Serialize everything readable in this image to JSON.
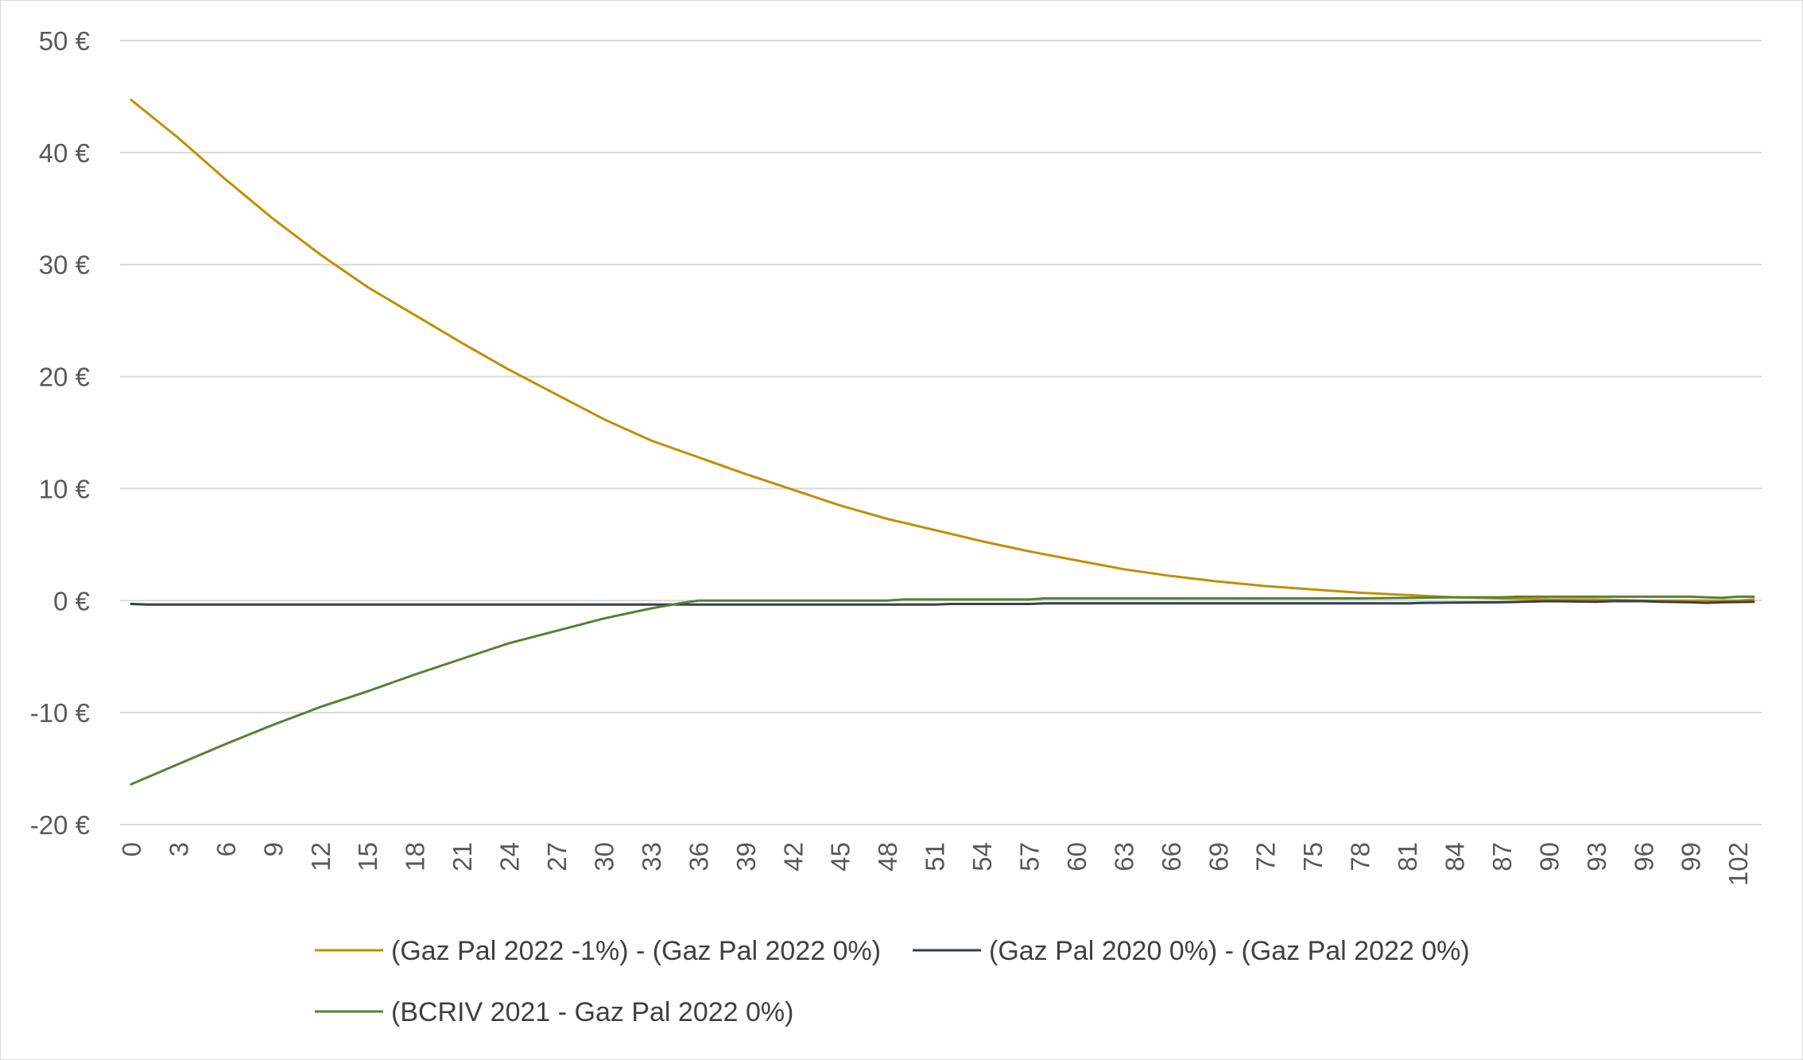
{
  "chart_data": {
    "type": "line",
    "title": "",
    "xlabel": "",
    "ylabel": "",
    "x_range": [
      0,
      103
    ],
    "x_tick_step": 3,
    "ylim": [
      -20,
      50
    ],
    "y_tick_step": 10,
    "y_tick_suffix": " €",
    "grid": "horizontal",
    "legend_position": "bottom",
    "series": [
      {
        "name": "(Gaz Pal 2022 -1%) - (Gaz Pal 2022 0%)",
        "color": "#BF9000",
        "points": [
          [
            0,
            44.7
          ],
          [
            3,
            41.3
          ],
          [
            6,
            37.6
          ],
          [
            9,
            34.1
          ],
          [
            12,
            30.9
          ],
          [
            15,
            28.0
          ],
          [
            18,
            25.5
          ],
          [
            21,
            23.0
          ],
          [
            24,
            20.6
          ],
          [
            27,
            18.4
          ],
          [
            30,
            16.2
          ],
          [
            33,
            14.3
          ],
          [
            36,
            12.8
          ],
          [
            39,
            11.3
          ],
          [
            42,
            9.9
          ],
          [
            45,
            8.5
          ],
          [
            48,
            7.3
          ],
          [
            51,
            6.3
          ],
          [
            54,
            5.3
          ],
          [
            57,
            4.4
          ],
          [
            60,
            3.6
          ],
          [
            63,
            2.8
          ],
          [
            66,
            2.2
          ],
          [
            69,
            1.7
          ],
          [
            72,
            1.3
          ],
          [
            75,
            1.0
          ],
          [
            78,
            0.7
          ],
          [
            81,
            0.5
          ],
          [
            84,
            0.3
          ],
          [
            87,
            0.2
          ],
          [
            90,
            0.1
          ],
          [
            93,
            0.1
          ],
          [
            96,
            0.0
          ],
          [
            99,
            0.0
          ],
          [
            102,
            0.0
          ],
          [
            103,
            0.1
          ]
        ]
      },
      {
        "name": "(Gaz Pal 2020 0%) - (Gaz Pal 2022 0%)",
        "color": "#333F50",
        "points": [
          [
            0,
            -0.3
          ],
          [
            1,
            -0.35
          ],
          [
            15,
            -0.35
          ],
          [
            30,
            -0.35
          ],
          [
            45,
            -0.35
          ],
          [
            51,
            -0.35
          ],
          [
            52,
            -0.3
          ],
          [
            57,
            -0.3
          ],
          [
            58,
            -0.25
          ],
          [
            81,
            -0.25
          ],
          [
            82,
            -0.2
          ],
          [
            87,
            -0.15
          ],
          [
            90,
            -0.05
          ],
          [
            93,
            -0.1
          ],
          [
            94,
            -0.05
          ],
          [
            96,
            -0.05
          ],
          [
            97,
            -0.1
          ],
          [
            99,
            -0.15
          ],
          [
            100,
            -0.2
          ],
          [
            101,
            -0.15
          ],
          [
            103,
            -0.1
          ]
        ]
      },
      {
        "name": "(BCRIV 2021 - Gaz Pal 2022 0%)",
        "color": "#548235",
        "points": [
          [
            0,
            -16.4
          ],
          [
            3,
            -14.6
          ],
          [
            6,
            -12.8
          ],
          [
            9,
            -11.1
          ],
          [
            12,
            -9.5
          ],
          [
            15,
            -8.1
          ],
          [
            18,
            -6.6
          ],
          [
            21,
            -5.2
          ],
          [
            24,
            -3.8
          ],
          [
            27,
            -2.7
          ],
          [
            30,
            -1.6
          ],
          [
            33,
            -0.7
          ],
          [
            35,
            -0.2
          ],
          [
            36,
            0.0
          ],
          [
            39,
            0.0
          ],
          [
            42,
            0.0
          ],
          [
            45,
            0.0
          ],
          [
            48,
            0.0
          ],
          [
            49,
            0.1
          ],
          [
            57,
            0.1
          ],
          [
            58,
            0.2
          ],
          [
            78,
            0.2
          ],
          [
            84,
            0.3
          ],
          [
            87,
            0.3
          ],
          [
            88,
            0.35
          ],
          [
            99,
            0.35
          ],
          [
            101,
            0.25
          ],
          [
            102,
            0.35
          ],
          [
            103,
            0.35
          ]
        ]
      }
    ]
  }
}
